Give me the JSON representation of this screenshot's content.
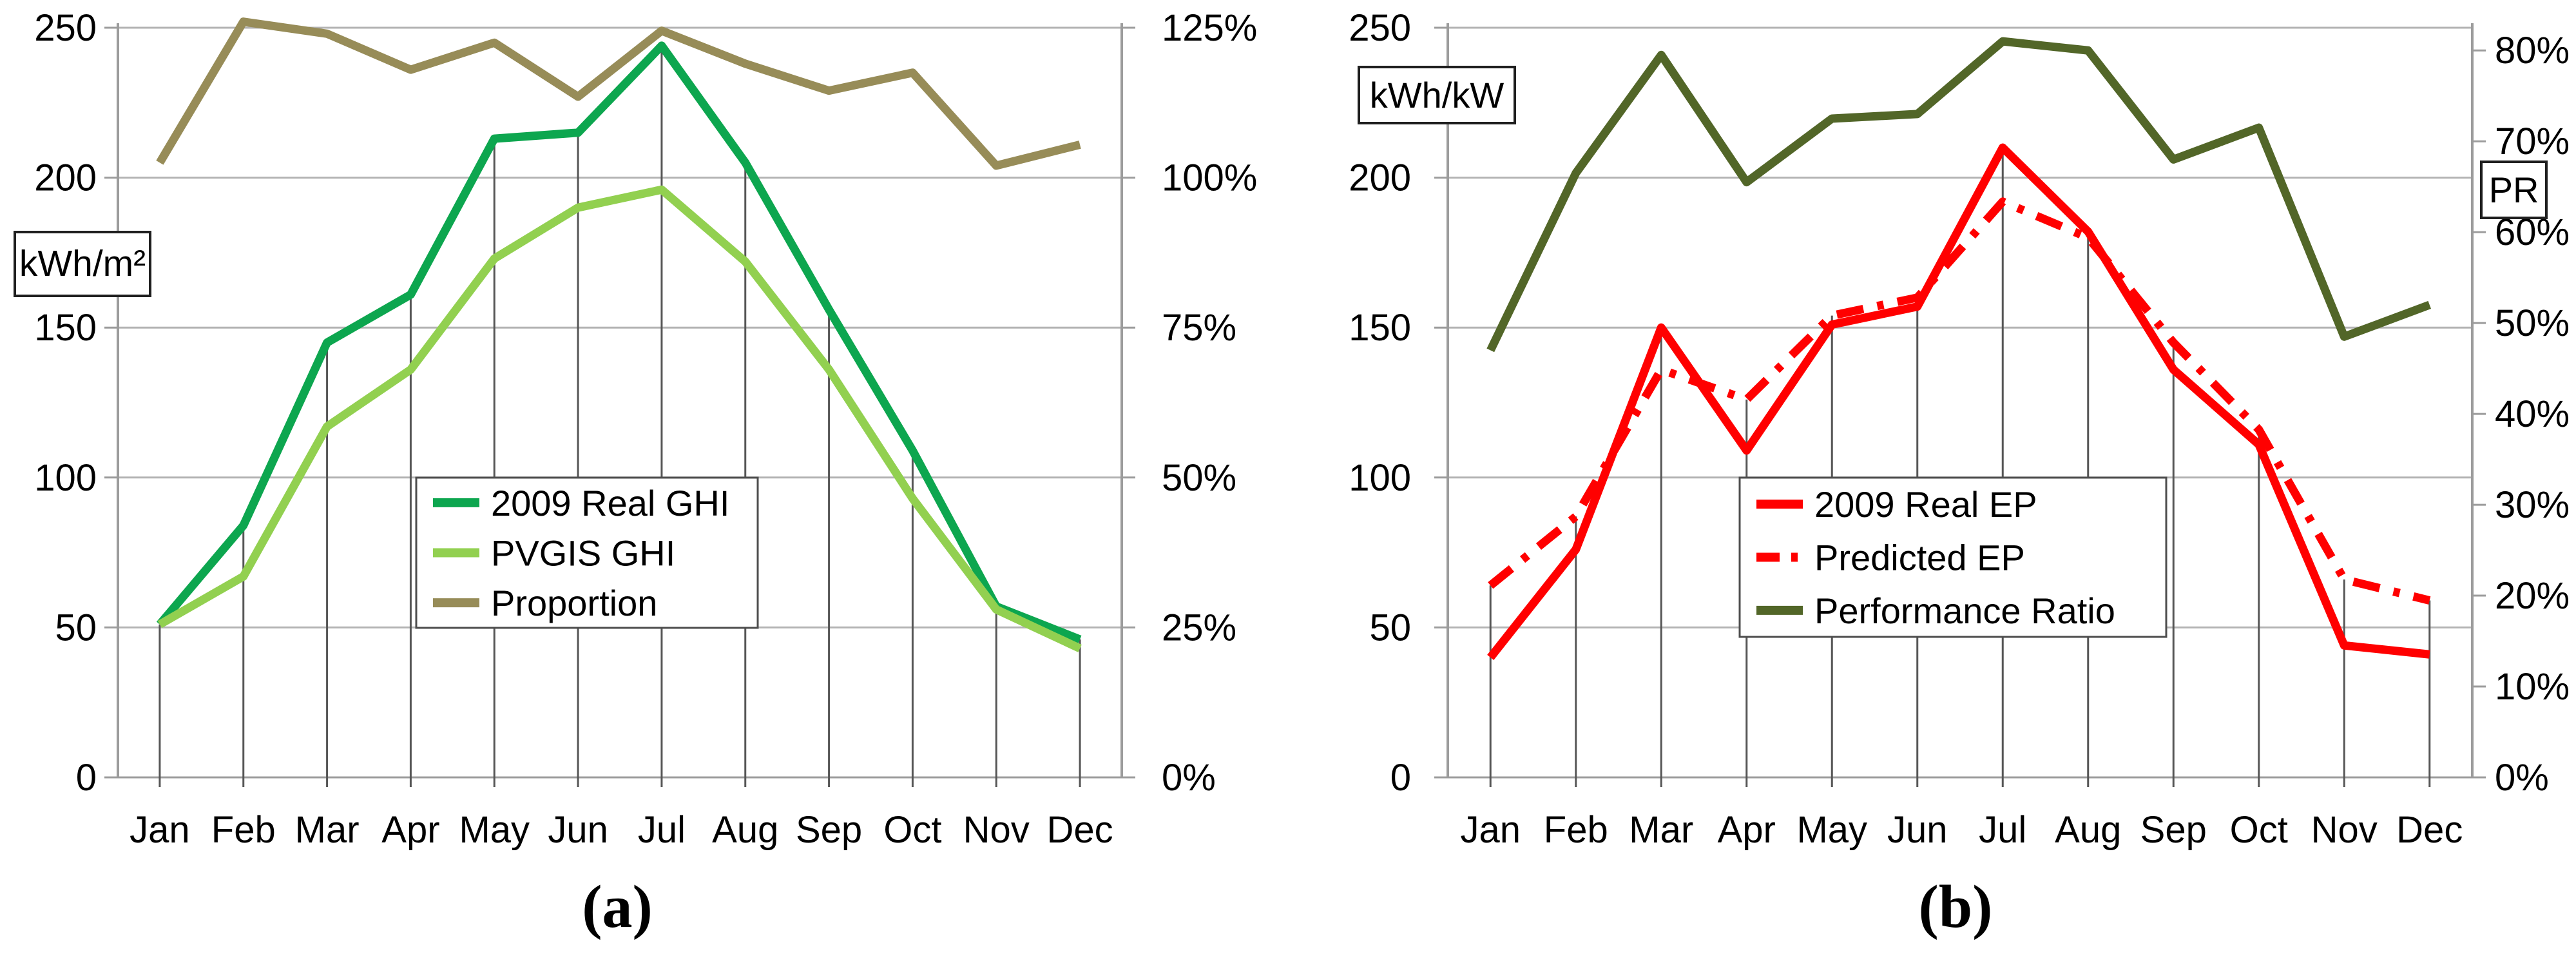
{
  "chart_data": [
    {
      "type": "line",
      "panel": "a",
      "caption": "(a)",
      "y_left_label": "kWh/m²",
      "y_right_label": "",
      "categories": [
        "Jan",
        "Feb",
        "Mar",
        "Apr",
        "May",
        "Jun",
        "Jul",
        "Aug",
        "Sep",
        "Oct",
        "Nov",
        "Dec"
      ],
      "left_axis": {
        "min": 0,
        "max": 250,
        "step": 50,
        "tick_labels": [
          "0",
          "50",
          "100",
          "150",
          "200",
          "250"
        ]
      },
      "right_axis": {
        "min": 0,
        "max": 125,
        "step": 25,
        "tick_labels": [
          "0%",
          "25%",
          "50%",
          "75%",
          "100%",
          "125%"
        ],
        "tick_values": [
          0,
          25,
          50,
          75,
          100,
          125
        ],
        "plot_max": 125
      },
      "grid": true,
      "drop_lines": true,
      "legend_position": "inside-center",
      "series": [
        {
          "name": "2009 Real GHI",
          "axis": "left",
          "color": "#0da64f",
          "line_style": "solid",
          "values": [
            51,
            84,
            145,
            161,
            213,
            215,
            244,
            205,
            156,
            109,
            57,
            46
          ]
        },
        {
          "name": "PVGIS GHI",
          "axis": "left",
          "color": "#92d050",
          "line_style": "solid",
          "values": [
            51,
            67,
            117,
            136,
            173,
            190,
            196,
            172,
            136,
            93,
            56,
            43
          ]
        },
        {
          "name": "Proportion",
          "axis": "right",
          "color": "#978c58",
          "line_style": "solid",
          "values": [
            102.5,
            126,
            124,
            118,
            122.5,
            113.5,
            124.5,
            119,
            114.5,
            117.5,
            102,
            105.5
          ]
        }
      ]
    },
    {
      "type": "line",
      "panel": "b",
      "caption": "(b)",
      "y_left_label": "kWh/kW",
      "y_right_label": "PR",
      "categories": [
        "Jan",
        "Feb",
        "Mar",
        "Apr",
        "May",
        "Jun",
        "Jul",
        "Aug",
        "Sep",
        "Oct",
        "Nov",
        "Dec"
      ],
      "left_axis": {
        "min": 0,
        "max": 250,
        "step": 50,
        "tick_labels": [
          "0",
          "50",
          "100",
          "150",
          "200",
          "250"
        ]
      },
      "right_axis": {
        "min": 0,
        "max": 80,
        "step": 10,
        "tick_labels": [
          "0%",
          "10%",
          "20%",
          "30%",
          "40%",
          "50%",
          "60%",
          "70%",
          "80%"
        ],
        "tick_values": [
          0,
          10,
          20,
          30,
          40,
          50,
          60,
          70,
          80
        ],
        "plot_max": 82.5
      },
      "grid": true,
      "drop_lines": true,
      "legend_position": "inside-center",
      "series": [
        {
          "name": "2009 Real EP",
          "axis": "left",
          "color": "#ff0000",
          "line_style": "solid",
          "values": [
            40,
            76,
            150,
            109,
            151,
            157,
            210,
            182,
            136,
            111,
            44,
            41
          ]
        },
        {
          "name": "Predicted EP",
          "axis": "left",
          "color": "#ff0000",
          "line_style": "dash-dot",
          "values": [
            64,
            87,
            136,
            126,
            154,
            160,
            192,
            180,
            145,
            116,
            66,
            59
          ]
        },
        {
          "name": "Performance Ratio",
          "axis": "right",
          "color": "#526628",
          "line_style": "solid",
          "values": [
            47,
            66.5,
            79.5,
            65.5,
            72.5,
            73,
            81,
            80,
            68,
            71.5,
            48.5,
            52
          ]
        }
      ]
    }
  ],
  "style_colors": {
    "gridline": "#b3b3b3",
    "axis": "#9c9c9c",
    "drop_line": "#565656",
    "legend_border": "#4d4d4d",
    "text": "#000000"
  }
}
